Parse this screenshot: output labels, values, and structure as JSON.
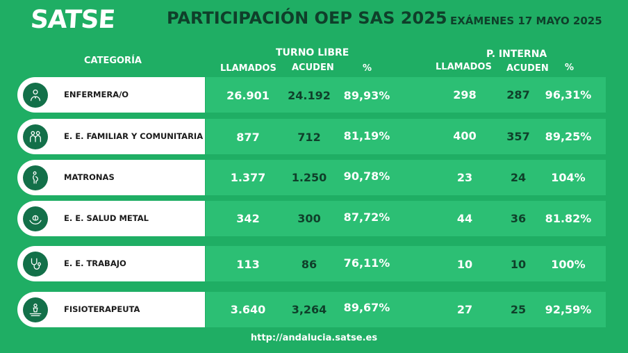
{
  "brand": "SATSE",
  "title": "PARTICIPACIÓN OEP SAS 2025",
  "exam_date": "EXÁMENES 17 MAYO 2025",
  "headers": {
    "categoria": "CATEGORÍA",
    "turno_libre": "TURNO LIBRE",
    "p_interna": "P. INTERNA",
    "llamados": "LLAMADOS",
    "acuden": "ACUDEN",
    "pct": "%"
  },
  "rows": [
    {
      "categoria": "ENFERMERA/O",
      "icon": "nurse-icon",
      "tl_llamados": "26.901",
      "tl_acuden": "24.192",
      "tl_pct": "89,93%",
      "pi_llamados": "298",
      "pi_acuden": "287",
      "pi_pct": "96,31%"
    },
    {
      "categoria": "E. E. FAMILIAR Y COMUNITARIA",
      "icon": "family-icon",
      "tl_llamados": "877",
      "tl_acuden": "712",
      "tl_pct": "81,19%",
      "pi_llamados": "400",
      "pi_acuden": "357",
      "pi_pct": "89,25%"
    },
    {
      "categoria": "MATRONAS",
      "icon": "pregnant-icon",
      "tl_llamados": "1.377",
      "tl_acuden": "1.250",
      "tl_pct": "90,78%",
      "pi_llamados": "23",
      "pi_acuden": "24",
      "pi_pct": "104%"
    },
    {
      "categoria": "E. E. SALUD METAL",
      "icon": "mental-health-icon",
      "tl_llamados": "342",
      "tl_acuden": "300",
      "tl_pct": "87,72%",
      "pi_llamados": "44",
      "pi_acuden": "36",
      "pi_pct": "81.82%"
    },
    {
      "categoria": "E. E. TRABAJO",
      "icon": "stethoscope-icon",
      "tl_llamados": "113",
      "tl_acuden": "86",
      "tl_pct": "76,11%",
      "pi_llamados": "10",
      "pi_acuden": "10",
      "pi_pct": "100%"
    },
    {
      "categoria": "FISIOTERAPEUTA",
      "icon": "physiotherapy-icon",
      "tl_llamados": "3.640",
      "tl_acuden": "3,264",
      "tl_pct": "89,67%",
      "pi_llamados": "27",
      "pi_acuden": "25",
      "pi_pct": "92,59%"
    }
  ],
  "footer_url": "http://andalucia.satse.es"
}
